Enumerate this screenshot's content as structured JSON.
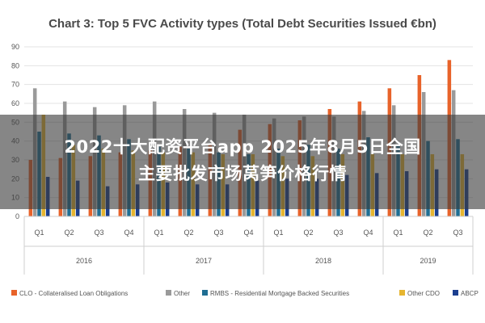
{
  "chart_data": {
    "type": "bar",
    "title": "Chart 3: Top 5 FVC Activity types (Total Debt Securities Issued €bn)",
    "xlabel": "",
    "ylabel": "",
    "ylim": [
      0,
      90
    ],
    "yticks": [
      0,
      10,
      20,
      30,
      40,
      50,
      60,
      70,
      80,
      90
    ],
    "grid": true,
    "legend_position": "bottom",
    "categories": [
      "Q1",
      "Q2",
      "Q3",
      "Q4",
      "Q1",
      "Q2",
      "Q3",
      "Q4",
      "Q1",
      "Q2",
      "Q3",
      "Q4",
      "Q1",
      "Q2",
      "Q3"
    ],
    "year_groups": [
      {
        "label": "2016",
        "count": 4
      },
      {
        "label": "2017",
        "count": 4
      },
      {
        "label": "2018",
        "count": 4
      },
      {
        "label": "2019",
        "count": 3
      }
    ],
    "series": [
      {
        "name": "CLO - Collateralised Loan Obligations",
        "color": "#e8632a",
        "values": [
          30,
          31,
          32,
          34,
          35,
          37,
          38,
          46,
          49,
          51,
          57,
          61,
          68,
          75,
          83
        ]
      },
      {
        "name": "Other",
        "color": "#9a9a9a",
        "values": [
          68,
          61,
          58,
          59,
          61,
          57,
          55,
          54,
          52,
          53,
          53,
          56,
          59,
          66,
          67
        ]
      },
      {
        "name": "RMBS - Residential Mortgage Backed Securities",
        "color": "#1f6e93",
        "values": [
          45,
          44,
          43,
          41,
          37,
          36,
          34,
          33,
          36,
          38,
          36,
          42,
          38,
          40,
          41
        ]
      },
      {
        "name": "Other CDO",
        "color": "#e6b530",
        "values": [
          54,
          38,
          36,
          35,
          34,
          34,
          33,
          33,
          32,
          32,
          33,
          33,
          33,
          33,
          33
        ]
      },
      {
        "name": "ABCP",
        "color": "#1b3f8f",
        "values": [
          21,
          19,
          16,
          17,
          18,
          17,
          17,
          19,
          20,
          20,
          22,
          23,
          24,
          25,
          25
        ]
      }
    ]
  },
  "overlay": {
    "line1": "2022十大配资平台app 2025年8月5日全国",
    "line2": "主要批发市场莴笋价格行情"
  }
}
